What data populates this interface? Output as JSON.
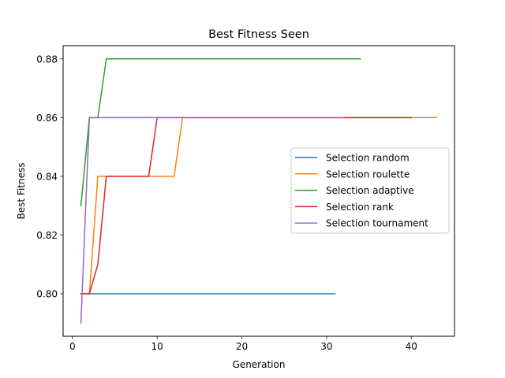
{
  "chart_data": {
    "type": "line",
    "title": "Best Fitness Seen",
    "xlabel": "Generation",
    "ylabel": "Best Fitness",
    "xlim": [
      -1.1,
      45.1
    ],
    "ylim": [
      0.7855,
      0.8845
    ],
    "xticks": [
      0,
      10,
      20,
      30,
      40
    ],
    "xtick_labels": [
      "0",
      "10",
      "20",
      "30",
      "40"
    ],
    "yticks": [
      0.8,
      0.82,
      0.84,
      0.86,
      0.88
    ],
    "ytick_labels": [
      "0.80",
      "0.82",
      "0.84",
      "0.86",
      "0.88"
    ],
    "grid": false,
    "legend_position": "center-right",
    "series": [
      {
        "name": "Selection random",
        "color": "#1f77b4",
        "x": [
          1,
          31
        ],
        "y": [
          0.8,
          0.8
        ]
      },
      {
        "name": "Selection roulette",
        "color": "#ff7f0e",
        "x": [
          1,
          2,
          3,
          12,
          13,
          43
        ],
        "y": [
          0.8,
          0.8,
          0.84,
          0.84,
          0.86,
          0.86
        ]
      },
      {
        "name": "Selection adaptive",
        "color": "#2ca02c",
        "x": [
          1,
          2,
          3,
          4,
          34
        ],
        "y": [
          0.83,
          0.86,
          0.86,
          0.88,
          0.88
        ]
      },
      {
        "name": "Selection rank",
        "color": "#d62728",
        "x": [
          1,
          2,
          3,
          4,
          9,
          10,
          40
        ],
        "y": [
          0.8,
          0.8,
          0.81,
          0.84,
          0.84,
          0.86,
          0.86
        ]
      },
      {
        "name": "Selection tournament",
        "color": "#9467bd",
        "x": [
          1,
          2,
          32
        ],
        "y": [
          0.79,
          0.86,
          0.86
        ]
      }
    ]
  }
}
